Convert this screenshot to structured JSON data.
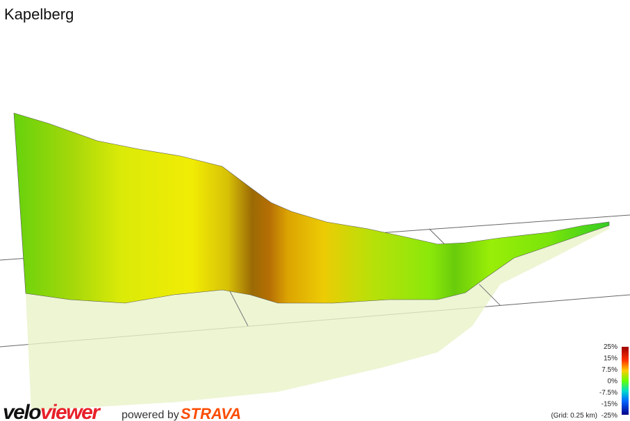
{
  "title": "Kapelberg",
  "legend": {
    "labels": [
      "25%",
      "15%",
      "7.5%",
      "0%",
      "-7.5%",
      "-15%",
      "-25%"
    ]
  },
  "grid_note": "(Grid: 0.25 km)",
  "brand": {
    "velo": "velo",
    "viewer": "viewer",
    "powered_by": "powered by",
    "strava": "STRAVA"
  }
}
